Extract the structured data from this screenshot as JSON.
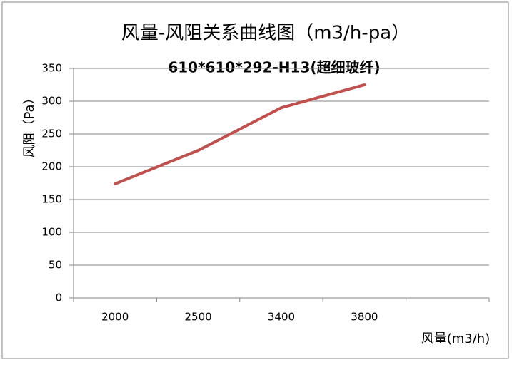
{
  "chart_data": {
    "type": "line",
    "title": "风量-风阻关系曲线图（m3/h-pa）",
    "subtitle": "610*610*292-H13(超细玻纤)",
    "x_label": "风量(m3/h)",
    "y_label": "风阻（Pa）",
    "categories": [
      "2000",
      "2500",
      "3400",
      "3800",
      null
    ],
    "series": [
      {
        "name": "风阻",
        "color": "#c0504d",
        "values": [
          174,
          225,
          290,
          325,
          null
        ]
      }
    ],
    "ylim": [
      0,
      350
    ],
    "yticks": [
      0,
      50,
      100,
      150,
      200,
      250,
      300,
      350
    ],
    "grid": true
  }
}
